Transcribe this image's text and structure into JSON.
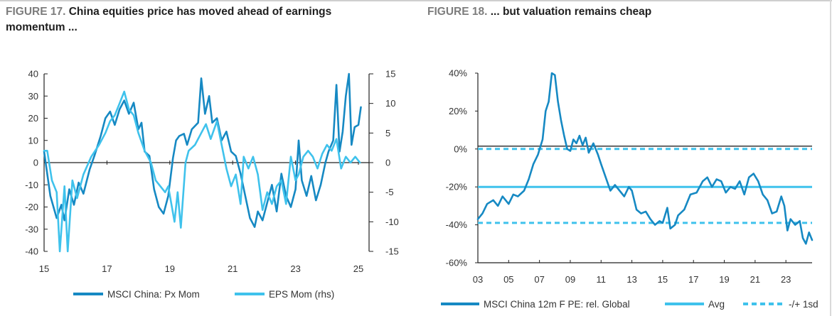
{
  "figures": [
    {
      "number": "FIGURE 17.",
      "title": "China equities price has moved ahead of earnings momentum ..."
    },
    {
      "number": "FIGURE 18.",
      "title": "... but valuation remains cheap"
    }
  ],
  "colors": {
    "dark_blue": "#1689c3",
    "light_blue": "#3fc2ec",
    "axis": "#222222",
    "text": "#333333"
  },
  "chart_data": [
    {
      "type": "line",
      "x_ticks": [
        "15",
        "17",
        "19",
        "21",
        "23",
        "25"
      ],
      "x_range": [
        2015.0,
        2025.0
      ],
      "y_left": {
        "range": [
          -40,
          40
        ],
        "ticks": [
          "40",
          "30",
          "20",
          "10",
          "0",
          "-10",
          "-20",
          "-30",
          "-40"
        ]
      },
      "y_right": {
        "range": [
          -15,
          15
        ],
        "ticks": [
          "15",
          "10",
          "5",
          "0",
          "-5",
          "-10",
          "-15"
        ]
      },
      "grid": false,
      "legend_position": "bottom",
      "series": [
        {
          "name": "MSCI China:  Px Mom",
          "axis": "left",
          "color": "#1689c3",
          "points": [
            [
              2015.0,
              5
            ],
            [
              2015.2,
              -15
            ],
            [
              2015.4,
              -25
            ],
            [
              2015.55,
              -19
            ],
            [
              2015.65,
              -26
            ],
            [
              2015.8,
              -12
            ],
            [
              2015.95,
              -19
            ],
            [
              2016.1,
              -9
            ],
            [
              2016.25,
              -14
            ],
            [
              2016.45,
              -3
            ],
            [
              2016.6,
              3
            ],
            [
              2016.8,
              12
            ],
            [
              2016.95,
              20
            ],
            [
              2017.1,
              23
            ],
            [
              2017.25,
              17
            ],
            [
              2017.4,
              24
            ],
            [
              2017.55,
              28
            ],
            [
              2017.7,
              22
            ],
            [
              2017.85,
              27
            ],
            [
              2018.0,
              15
            ],
            [
              2018.1,
              18
            ],
            [
              2018.2,
              5
            ],
            [
              2018.35,
              3
            ],
            [
              2018.5,
              -12
            ],
            [
              2018.65,
              -20
            ],
            [
              2018.8,
              -23
            ],
            [
              2018.95,
              -15
            ],
            [
              2019.1,
              2
            ],
            [
              2019.2,
              10
            ],
            [
              2019.3,
              12
            ],
            [
              2019.45,
              13
            ],
            [
              2019.55,
              8
            ],
            [
              2019.7,
              15
            ],
            [
              2019.9,
              18
            ],
            [
              2020.0,
              38
            ],
            [
              2020.12,
              22
            ],
            [
              2020.25,
              30
            ],
            [
              2020.35,
              18
            ],
            [
              2020.5,
              20
            ],
            [
              2020.65,
              10
            ],
            [
              2020.8,
              14
            ],
            [
              2020.95,
              5
            ],
            [
              2021.1,
              3
            ],
            [
              2021.25,
              -5
            ],
            [
              2021.4,
              -15
            ],
            [
              2021.55,
              -25
            ],
            [
              2021.7,
              -29
            ],
            [
              2021.8,
              -22
            ],
            [
              2021.95,
              -26
            ],
            [
              2022.1,
              -18
            ],
            [
              2022.25,
              -10
            ],
            [
              2022.4,
              -22
            ],
            [
              2022.55,
              -5
            ],
            [
              2022.7,
              -15
            ],
            [
              2022.85,
              -20
            ],
            [
              2023.0,
              -12
            ],
            [
              2023.1,
              10
            ],
            [
              2023.2,
              -8
            ],
            [
              2023.35,
              -15
            ],
            [
              2023.5,
              -6
            ],
            [
              2023.65,
              -17
            ],
            [
              2023.8,
              -10
            ],
            [
              2023.95,
              0
            ],
            [
              2024.05,
              5
            ],
            [
              2024.2,
              10
            ],
            [
              2024.3,
              35
            ],
            [
              2024.4,
              5
            ],
            [
              2024.5,
              14
            ],
            [
              2024.6,
              30
            ],
            [
              2024.7,
              40
            ],
            [
              2024.78,
              8
            ],
            [
              2024.88,
              16
            ],
            [
              2025.0,
              17
            ],
            [
              2025.08,
              25
            ]
          ]
        },
        {
          "name": "EPS Mom (rhs)",
          "axis": "right",
          "color": "#3fc2ec",
          "points": [
            [
              2015.0,
              2.0
            ],
            [
              2015.1,
              2.0
            ],
            [
              2015.25,
              -3.0
            ],
            [
              2015.4,
              -5.0
            ],
            [
              2015.5,
              -15.0
            ],
            [
              2015.65,
              -4.0
            ],
            [
              2015.75,
              -15.0
            ],
            [
              2015.9,
              -3.0
            ],
            [
              2016.05,
              -6.0
            ],
            [
              2016.25,
              -2.0
            ],
            [
              2016.5,
              1.0
            ],
            [
              2016.75,
              3.0
            ],
            [
              2016.95,
              5.0
            ],
            [
              2017.1,
              7.0
            ],
            [
              2017.25,
              8.0
            ],
            [
              2017.4,
              10.0
            ],
            [
              2017.55,
              12.0
            ],
            [
              2017.7,
              9.0
            ],
            [
              2017.85,
              8.0
            ],
            [
              2018.0,
              5.0
            ],
            [
              2018.2,
              2.0
            ],
            [
              2018.4,
              0.0
            ],
            [
              2018.55,
              -3.0
            ],
            [
              2018.7,
              -4.0
            ],
            [
              2018.85,
              -5.0
            ],
            [
              2018.95,
              -4.0
            ],
            [
              2019.05,
              -7.0
            ],
            [
              2019.15,
              -10.0
            ],
            [
              2019.25,
              -5.0
            ],
            [
              2019.35,
              -11.0
            ],
            [
              2019.5,
              0.0
            ],
            [
              2019.6,
              2.0
            ],
            [
              2019.8,
              3.0
            ],
            [
              2020.0,
              5.0
            ],
            [
              2020.15,
              6.5
            ],
            [
              2020.3,
              4.0
            ],
            [
              2020.5,
              7.0
            ],
            [
              2020.65,
              3.0
            ],
            [
              2020.8,
              -1.0
            ],
            [
              2020.95,
              -4.0
            ],
            [
              2021.1,
              -2.0
            ],
            [
              2021.25,
              -7.0
            ],
            [
              2021.35,
              1.0
            ],
            [
              2021.5,
              -1.0
            ],
            [
              2021.65,
              1.0
            ],
            [
              2021.8,
              -2.0
            ],
            [
              2021.95,
              -8.0
            ],
            [
              2022.1,
              -5.0
            ],
            [
              2022.25,
              -7.0
            ],
            [
              2022.4,
              -4.0
            ],
            [
              2022.55,
              -3.0
            ],
            [
              2022.7,
              -7.0
            ],
            [
              2022.85,
              1.0
            ],
            [
              2023.0,
              -3.0
            ],
            [
              2023.1,
              -2.0
            ],
            [
              2023.25,
              1.0
            ],
            [
              2023.4,
              2.0
            ],
            [
              2023.55,
              1.0
            ],
            [
              2023.7,
              -1.0
            ],
            [
              2023.85,
              1.5
            ],
            [
              2024.0,
              3.0
            ],
            [
              2024.15,
              2.0
            ],
            [
              2024.3,
              4.0
            ],
            [
              2024.45,
              -1.0
            ],
            [
              2024.6,
              1.0
            ],
            [
              2024.75,
              0.0
            ],
            [
              2024.9,
              1.0
            ],
            [
              2025.05,
              0.0
            ]
          ]
        }
      ],
      "legend": [
        "MSCI China:  Px Mom",
        "EPS Mom (rhs)"
      ]
    },
    {
      "type": "line",
      "x_ticks": [
        "03",
        "05",
        "07",
        "09",
        "11",
        "13",
        "15",
        "17",
        "19",
        "21",
        "23"
      ],
      "x_range": [
        2003.0,
        2024.7
      ],
      "y_range": [
        -60,
        40
      ],
      "y_ticks": [
        "40%",
        "20%",
        "0%",
        "-20%",
        "-40%",
        "-60%"
      ],
      "grid": false,
      "legend_position": "bottom",
      "avg_value": -20,
      "upper_band": 0,
      "lower_band": -39,
      "series": [
        {
          "name": "MSCI China 12m F PE: rel. Global",
          "color": "#1689c3",
          "points": [
            [
              2003.0,
              -37
            ],
            [
              2003.3,
              -34
            ],
            [
              2003.6,
              -29
            ],
            [
              2004.0,
              -27
            ],
            [
              2004.3,
              -30
            ],
            [
              2004.6,
              -25
            ],
            [
              2005.0,
              -29
            ],
            [
              2005.3,
              -24
            ],
            [
              2005.6,
              -25
            ],
            [
              2006.0,
              -22
            ],
            [
              2006.3,
              -16
            ],
            [
              2006.6,
              -8
            ],
            [
              2006.9,
              -3
            ],
            [
              2007.2,
              5
            ],
            [
              2007.4,
              20
            ],
            [
              2007.6,
              25
            ],
            [
              2007.8,
              40
            ],
            [
              2008.0,
              39
            ],
            [
              2008.2,
              25
            ],
            [
              2008.4,
              15
            ],
            [
              2008.6,
              7
            ],
            [
              2008.8,
              0
            ],
            [
              2009.0,
              -1
            ],
            [
              2009.2,
              5
            ],
            [
              2009.4,
              3
            ],
            [
              2009.6,
              7
            ],
            [
              2009.8,
              2
            ],
            [
              2010.0,
              6
            ],
            [
              2010.2,
              -2
            ],
            [
              2010.5,
              3
            ],
            [
              2010.8,
              -3
            ],
            [
              2011.0,
              -8
            ],
            [
              2011.3,
              -15
            ],
            [
              2011.6,
              -22
            ],
            [
              2011.9,
              -19
            ],
            [
              2012.2,
              -22
            ],
            [
              2012.5,
              -25
            ],
            [
              2012.8,
              -20
            ],
            [
              2013.0,
              -22
            ],
            [
              2013.3,
              -32
            ],
            [
              2013.6,
              -34
            ],
            [
              2013.9,
              -33
            ],
            [
              2014.2,
              -37
            ],
            [
              2014.5,
              -40
            ],
            [
              2014.8,
              -38
            ],
            [
              2015.0,
              -39
            ],
            [
              2015.3,
              -31
            ],
            [
              2015.5,
              -42
            ],
            [
              2015.8,
              -40
            ],
            [
              2016.0,
              -35
            ],
            [
              2016.4,
              -32
            ],
            [
              2016.8,
              -24
            ],
            [
              2017.2,
              -23
            ],
            [
              2017.6,
              -17
            ],
            [
              2017.9,
              -15
            ],
            [
              2018.2,
              -20
            ],
            [
              2018.5,
              -16
            ],
            [
              2018.8,
              -17
            ],
            [
              2019.1,
              -23
            ],
            [
              2019.4,
              -20
            ],
            [
              2019.7,
              -21
            ],
            [
              2020.0,
              -17
            ],
            [
              2020.3,
              -24
            ],
            [
              2020.6,
              -15
            ],
            [
              2020.9,
              -13
            ],
            [
              2021.2,
              -17
            ],
            [
              2021.5,
              -24
            ],
            [
              2021.8,
              -27
            ],
            [
              2022.1,
              -34
            ],
            [
              2022.4,
              -33
            ],
            [
              2022.7,
              -25
            ],
            [
              2022.9,
              -30
            ],
            [
              2023.1,
              -43
            ],
            [
              2023.3,
              -37
            ],
            [
              2023.6,
              -40
            ],
            [
              2023.9,
              -38
            ],
            [
              2024.1,
              -47
            ],
            [
              2024.3,
              -50
            ],
            [
              2024.5,
              -44
            ],
            [
              2024.7,
              -48
            ]
          ]
        },
        {
          "name": "Avg",
          "color": "#3fc2ec",
          "style": "solid"
        },
        {
          "name": "-/+ 1sd",
          "color": "#3fc2ec",
          "style": "dashed"
        }
      ],
      "legend": [
        "MSCI China 12m F PE: rel. Global",
        "Avg",
        "-/+ 1sd"
      ]
    }
  ]
}
